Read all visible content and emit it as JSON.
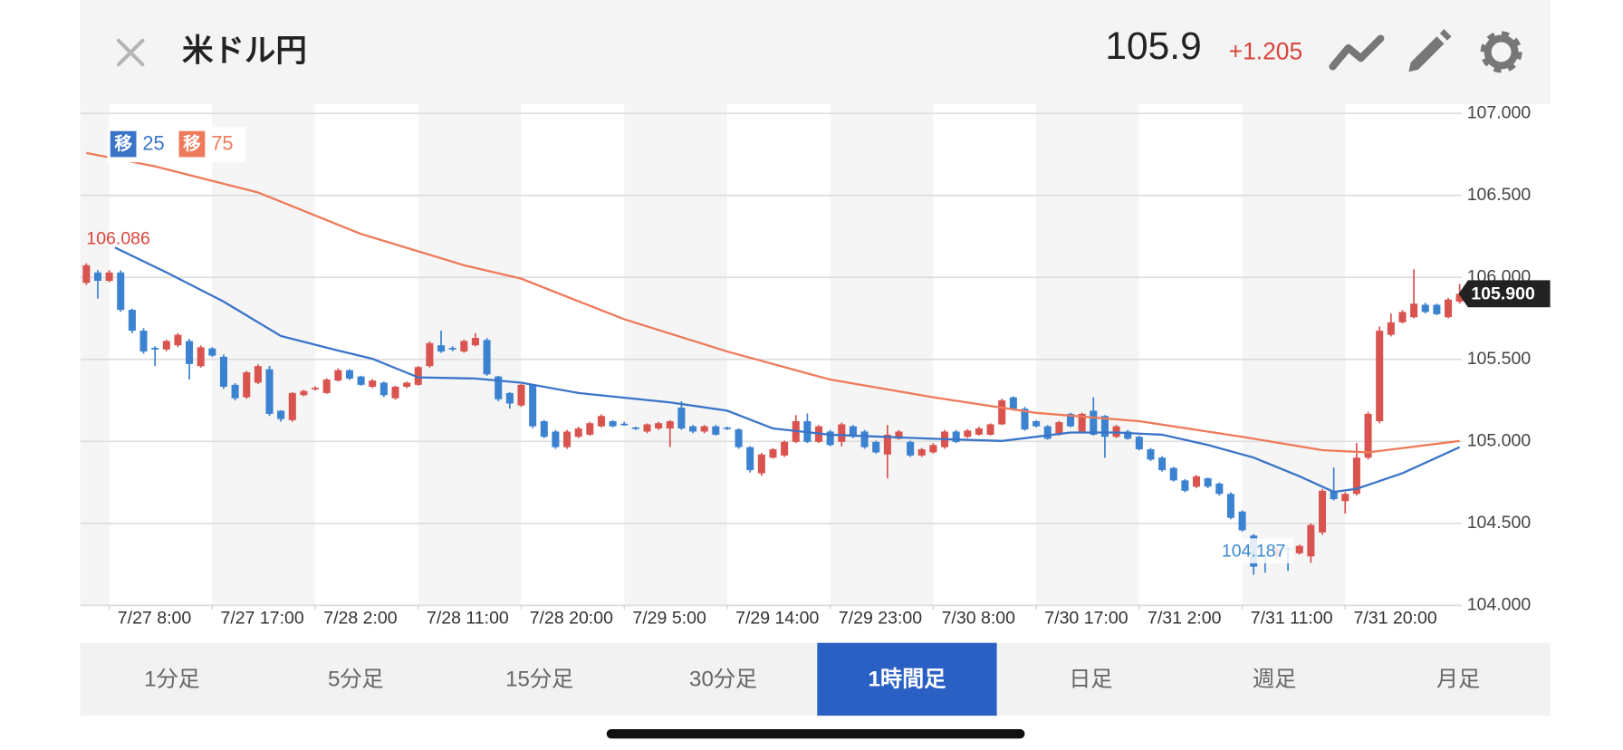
{
  "chart_data": {
    "type": "candlestick",
    "title": "米ドル円",
    "price": "105.9",
    "change": "+1.205",
    "up_color": "#d9534f",
    "down_color": "#3b82d0",
    "ylim": [
      104,
      107
    ],
    "yticks": [
      {
        "value": 107,
        "label": "107.000"
      },
      {
        "value": 106.5,
        "label": "106.500"
      },
      {
        "value": 106,
        "label": "106.000"
      },
      {
        "value": 105.5,
        "label": "105.500"
      },
      {
        "value": 105,
        "label": "105.000"
      },
      {
        "value": 104.5,
        "label": "104.500"
      },
      {
        "value": 104,
        "label": "104.000"
      }
    ],
    "grid": true,
    "xticks": [
      {
        "value": 2,
        "label": "7/27 8:00"
      },
      {
        "value": 11,
        "label": "7/27 17:00"
      },
      {
        "value": 20,
        "label": "7/28 2:00"
      },
      {
        "value": 29,
        "label": "7/28 11:00"
      },
      {
        "value": 38,
        "label": "7/28 20:00"
      },
      {
        "value": 47,
        "label": "7/29 5:00"
      },
      {
        "value": 56,
        "label": "7/29 14:00"
      },
      {
        "value": 65,
        "label": "7/29 23:00"
      },
      {
        "value": 74,
        "label": "7/30 8:00"
      },
      {
        "value": 83,
        "label": "7/30 17:00"
      },
      {
        "value": 92,
        "label": "7/31 2:00"
      },
      {
        "value": 101,
        "label": "7/31 11:00"
      },
      {
        "value": 110,
        "label": "7/31 20:00"
      }
    ],
    "high_label": "106.086",
    "low_label": "104.187",
    "last_label": "105.900",
    "legend_icon": "移",
    "candles": [
      [
        105.967,
        106.086,
        105.955,
        106.074
      ],
      [
        106.03,
        106.045,
        105.871,
        105.979
      ],
      [
        105.979,
        106.045,
        105.97,
        106.03
      ],
      [
        106.03,
        106.043,
        105.79,
        105.802
      ],
      [
        105.802,
        105.81,
        105.66,
        105.675
      ],
      [
        105.675,
        105.69,
        105.535,
        105.548
      ],
      [
        105.57,
        105.58,
        105.459,
        105.56
      ],
      [
        105.561,
        105.62,
        105.55,
        105.612
      ],
      [
        105.586,
        105.66,
        105.575,
        105.65
      ],
      [
        105.612,
        105.625,
        105.377,
        105.472
      ],
      [
        105.459,
        105.585,
        105.45,
        105.574
      ],
      [
        105.567,
        105.575,
        105.515,
        105.523
      ],
      [
        105.516,
        105.53,
        105.32,
        105.333
      ],
      [
        105.345,
        105.355,
        105.25,
        105.263
      ],
      [
        105.269,
        105.43,
        105.26,
        105.421
      ],
      [
        105.358,
        105.47,
        105.35,
        105.459
      ],
      [
        105.44,
        105.46,
        105.155,
        105.168
      ],
      [
        105.187,
        105.19,
        105.12,
        105.136
      ],
      [
        105.13,
        105.3,
        105.12,
        105.295
      ],
      [
        105.282,
        105.315,
        105.275,
        105.307
      ],
      [
        105.32,
        105.335,
        105.31,
        105.327
      ],
      [
        105.295,
        105.385,
        105.29,
        105.377
      ],
      [
        105.371,
        105.445,
        105.365,
        105.434
      ],
      [
        105.434,
        105.44,
        105.375,
        105.383
      ],
      [
        105.396,
        105.4,
        105.34,
        105.345
      ],
      [
        105.333,
        105.38,
        105.325,
        105.371
      ],
      [
        105.358,
        105.365,
        105.27,
        105.282
      ],
      [
        105.263,
        105.34,
        105.255,
        105.333
      ],
      [
        105.333,
        105.365,
        105.325,
        105.358
      ],
      [
        105.345,
        105.46,
        105.34,
        105.453
      ],
      [
        105.459,
        105.61,
        105.45,
        105.599
      ],
      [
        105.586,
        105.675,
        105.54,
        105.548
      ],
      [
        105.57,
        105.58,
        105.55,
        105.56
      ],
      [
        105.548,
        105.62,
        105.54,
        105.612
      ],
      [
        105.586,
        105.66,
        105.58,
        105.631
      ],
      [
        105.618,
        105.63,
        105.4,
        105.409
      ],
      [
        105.396,
        105.4,
        105.245,
        105.257
      ],
      [
        105.295,
        105.3,
        105.2,
        105.231
      ],
      [
        105.219,
        105.35,
        105.21,
        105.345
      ],
      [
        105.345,
        105.35,
        105.08,
        105.092
      ],
      [
        105.123,
        105.13,
        105.02,
        105.028
      ],
      [
        105.06,
        105.07,
        104.955,
        104.965
      ],
      [
        104.965,
        105.07,
        104.955,
        105.06
      ],
      [
        105.028,
        105.09,
        105.02,
        105.079
      ],
      [
        105.041,
        105.12,
        105.035,
        105.111
      ],
      [
        105.092,
        105.165,
        105.085,
        105.155
      ],
      [
        105.123,
        105.13,
        105.085,
        105.092
      ],
      [
        105.108,
        105.12,
        105.095,
        105.104
      ],
      [
        105.085,
        105.09,
        105.07,
        105.079
      ],
      [
        105.06,
        105.11,
        105.05,
        105.104
      ],
      [
        105.079,
        105.12,
        105.07,
        105.111
      ],
      [
        105.079,
        105.13,
        104.965,
        105.123
      ],
      [
        105.206,
        105.244,
        105.07,
        105.079
      ],
      [
        105.092,
        105.1,
        105.05,
        105.06
      ],
      [
        105.06,
        105.1,
        105.05,
        105.092
      ],
      [
        105.092,
        105.1,
        105.035,
        105.041
      ],
      [
        105.085,
        105.09,
        105.07,
        105.079
      ],
      [
        105.073,
        105.08,
        104.955,
        104.965
      ],
      [
        104.965,
        104.97,
        104.81,
        104.825
      ],
      [
        104.806,
        104.93,
        104.79,
        104.92
      ],
      [
        104.901,
        104.96,
        104.895,
        104.952
      ],
      [
        104.914,
        105.005,
        104.905,
        104.997
      ],
      [
        104.997,
        105.16,
        104.99,
        105.123
      ],
      [
        105.123,
        105.17,
        104.99,
        104.997
      ],
      [
        104.997,
        105.1,
        104.99,
        105.092
      ],
      [
        105.06,
        105.07,
        104.97,
        104.978
      ],
      [
        104.997,
        105.115,
        104.97,
        105.104
      ],
      [
        105.092,
        105.1,
        105.02,
        105.028
      ],
      [
        105.06,
        105.07,
        104.955,
        104.965
      ],
      [
        104.997,
        105.005,
        104.925,
        104.933
      ],
      [
        104.92,
        105.1,
        104.775,
        105.041
      ],
      [
        105.016,
        105.07,
        105.01,
        105.06
      ],
      [
        104.997,
        105.005,
        104.905,
        104.914
      ],
      [
        104.914,
        104.96,
        104.905,
        104.952
      ],
      [
        104.933,
        104.99,
        104.925,
        104.978
      ],
      [
        104.965,
        105.07,
        104.955,
        105.06
      ],
      [
        105.06,
        105.07,
        104.99,
        104.997
      ],
      [
        105.028,
        105.075,
        105.02,
        105.066
      ],
      [
        105.041,
        105.09,
        105.035,
        105.079
      ],
      [
        105.041,
        105.11,
        105.035,
        105.104
      ],
      [
        105.104,
        105.26,
        105.1,
        105.25
      ],
      [
        105.269,
        105.275,
        105.19,
        105.199
      ],
      [
        105.199,
        105.21,
        105.065,
        105.073
      ],
      [
        105.123,
        105.13,
        105.085,
        105.092
      ],
      [
        105.092,
        105.1,
        105.01,
        105.016
      ],
      [
        105.041,
        105.125,
        105.035,
        105.117
      ],
      [
        105.168,
        105.175,
        105.085,
        105.092
      ],
      [
        105.06,
        105.175,
        105.055,
        105.168
      ],
      [
        105.187,
        105.269,
        105.035,
        105.041
      ],
      [
        105.155,
        105.16,
        104.9,
        105.028
      ],
      [
        105.028,
        105.1,
        105.02,
        105.092
      ],
      [
        105.06,
        105.07,
        105.01,
        105.016
      ],
      [
        105.028,
        105.035,
        104.945,
        104.952
      ],
      [
        104.952,
        104.96,
        104.88,
        104.889
      ],
      [
        104.901,
        104.91,
        104.815,
        104.825
      ],
      [
        104.838,
        104.845,
        104.755,
        104.762
      ],
      [
        104.762,
        104.77,
        104.69,
        104.699
      ],
      [
        104.724,
        104.795,
        104.715,
        104.787
      ],
      [
        104.775,
        104.78,
        104.715,
        104.724
      ],
      [
        104.743,
        104.75,
        104.67,
        104.68
      ],
      [
        104.68,
        104.69,
        104.525,
        104.534
      ],
      [
        104.572,
        104.58,
        104.45,
        104.458
      ],
      [
        104.426,
        104.435,
        104.187,
        104.236
      ],
      [
        104.305,
        104.31,
        104.2,
        104.299
      ],
      [
        104.299,
        104.355,
        104.29,
        104.344
      ],
      [
        104.35,
        104.36,
        104.21,
        104.344
      ],
      [
        104.318,
        104.37,
        104.31,
        104.363
      ],
      [
        104.299,
        104.5,
        104.26,
        104.49
      ],
      [
        104.445,
        104.71,
        104.43,
        104.699
      ],
      [
        104.699,
        104.84,
        104.64,
        104.648
      ],
      [
        104.636,
        104.69,
        104.56,
        104.68
      ],
      [
        104.68,
        104.99,
        104.67,
        104.901
      ],
      [
        104.901,
        105.18,
        104.89,
        105.168
      ],
      [
        105.123,
        105.7,
        105.11,
        105.675
      ],
      [
        105.65,
        105.78,
        105.64,
        105.726
      ],
      [
        105.726,
        105.8,
        105.72,
        105.789
      ],
      [
        105.757,
        106.05,
        105.75,
        105.84
      ],
      [
        105.833,
        105.845,
        105.78,
        105.789
      ],
      [
        105.833,
        105.84,
        105.77,
        105.776
      ],
      [
        105.757,
        105.875,
        105.75,
        105.865
      ],
      [
        105.852,
        105.96,
        105.84,
        105.9
      ]
    ],
    "series": [
      {
        "name": "25",
        "color": "#3a74c8",
        "x": [
          2.5,
          7,
          12,
          17,
          22,
          25,
          29,
          34,
          38,
          43,
          51,
          56,
          60,
          65,
          74,
          80,
          86,
          90,
          94,
          98,
          102,
          106,
          109,
          111,
          115,
          120
        ],
        "values": [
          106.182,
          106.03,
          105.852,
          105.643,
          105.554,
          105.504,
          105.39,
          105.383,
          105.358,
          105.295,
          105.238,
          105.187,
          105.079,
          105.041,
          105.016,
          105.003,
          105.054,
          105.054,
          105.041,
          104.978,
          104.901,
          104.787,
          104.692,
          104.711,
          104.806,
          104.965
        ]
      },
      {
        "name": "75",
        "color": "#ee7a5a",
        "x": [
          0,
          6,
          15,
          24,
          33,
          38,
          47,
          56,
          65,
          74,
          83,
          92,
          101,
          108,
          112,
          120
        ],
        "values": [
          106.759,
          106.677,
          106.518,
          106.265,
          106.074,
          105.992,
          105.745,
          105.548,
          105.377,
          105.269,
          105.174,
          105.123,
          105.028,
          104.946,
          104.933,
          105.003
        ]
      }
    ]
  },
  "tabs": [
    "1分足",
    "5分足",
    "15分足",
    "30分足",
    "1時間足",
    "日足",
    "週足",
    "月足"
  ],
  "selected_tab": 4
}
